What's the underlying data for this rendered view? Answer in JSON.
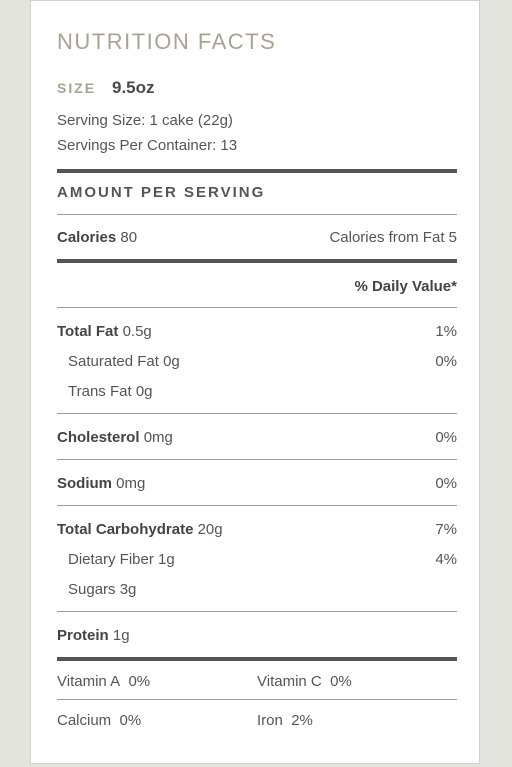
{
  "header": {
    "title": "NUTRITION FACTS",
    "size_label": "SIZE",
    "size_value": "9.5oz"
  },
  "serving": {
    "serving_size": "Serving Size: 1 cake (22g)",
    "servings_per_container": "Servings Per Container: 13"
  },
  "amount_per_serving": "AMOUNT PER SERVING",
  "calories": {
    "label": "Calories",
    "value": "80",
    "from_fat": "Calories from Fat 5"
  },
  "daily_value_header": "% Daily Value*",
  "nutrients": [
    {
      "name": "Total Fat",
      "amount": "0.5g",
      "dv": "1%"
    },
    {
      "name": "Saturated Fat",
      "amount": "0g",
      "dv": "0%"
    },
    {
      "name": "Trans Fat",
      "amount": "0g",
      "dv": ""
    },
    {
      "name": "Cholesterol",
      "amount": "0mg",
      "dv": "0%"
    },
    {
      "name": "Sodium",
      "amount": "0mg",
      "dv": "0%"
    },
    {
      "name": "Total Carbohydrate",
      "amount": "20g",
      "dv": "7%"
    },
    {
      "name": "Dietary Fiber",
      "amount": "1g",
      "dv": "4%"
    },
    {
      "name": "Sugars",
      "amount": "3g",
      "dv": ""
    },
    {
      "name": "Protein",
      "amount": "1g",
      "dv": ""
    }
  ],
  "vitamins": [
    {
      "name": "Vitamin A",
      "dv": "0%"
    },
    {
      "name": "Vitamin C",
      "dv": "0%"
    },
    {
      "name": "Calcium",
      "dv": "0%"
    },
    {
      "name": "Iron",
      "dv": "2%"
    }
  ]
}
